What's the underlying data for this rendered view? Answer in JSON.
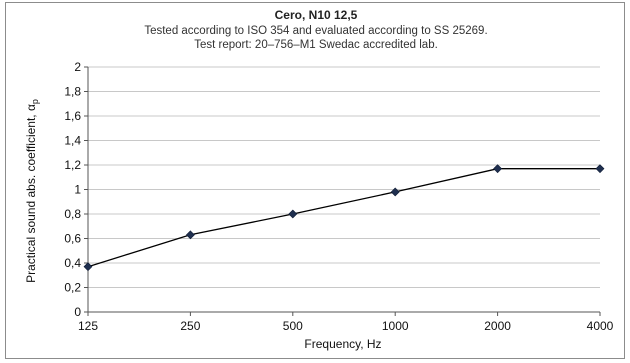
{
  "chart_data": {
    "type": "line",
    "title": "Cero, N10 12,5",
    "subtitle_lines": [
      "Tested according to ISO 354 and evaluated according to SS 25269.",
      "Test report: 20–756–M1 Swedac accredited lab."
    ],
    "xlabel": "Frequency, Hz",
    "ylabel": "Practical sound abs. coefficient, α",
    "ylabel_subscript": "p",
    "categories": [
      "125",
      "250",
      "500",
      "1000",
      "2000",
      "4000"
    ],
    "series": [
      {
        "values": [
          0.37,
          0.63,
          0.8,
          0.98,
          1.17,
          1.17
        ]
      }
    ],
    "ylim": [
      0,
      2
    ],
    "yticks": [
      "0",
      "0,2",
      "0,4",
      "0,6",
      "0,8",
      "1",
      "1,2",
      "1,4",
      "1,6",
      "1,8",
      "2"
    ],
    "grid": true,
    "colors": {
      "line": "#000000",
      "marker": "#1f2f4f",
      "grid": "#c8c8c8",
      "axis": "#555555"
    }
  }
}
